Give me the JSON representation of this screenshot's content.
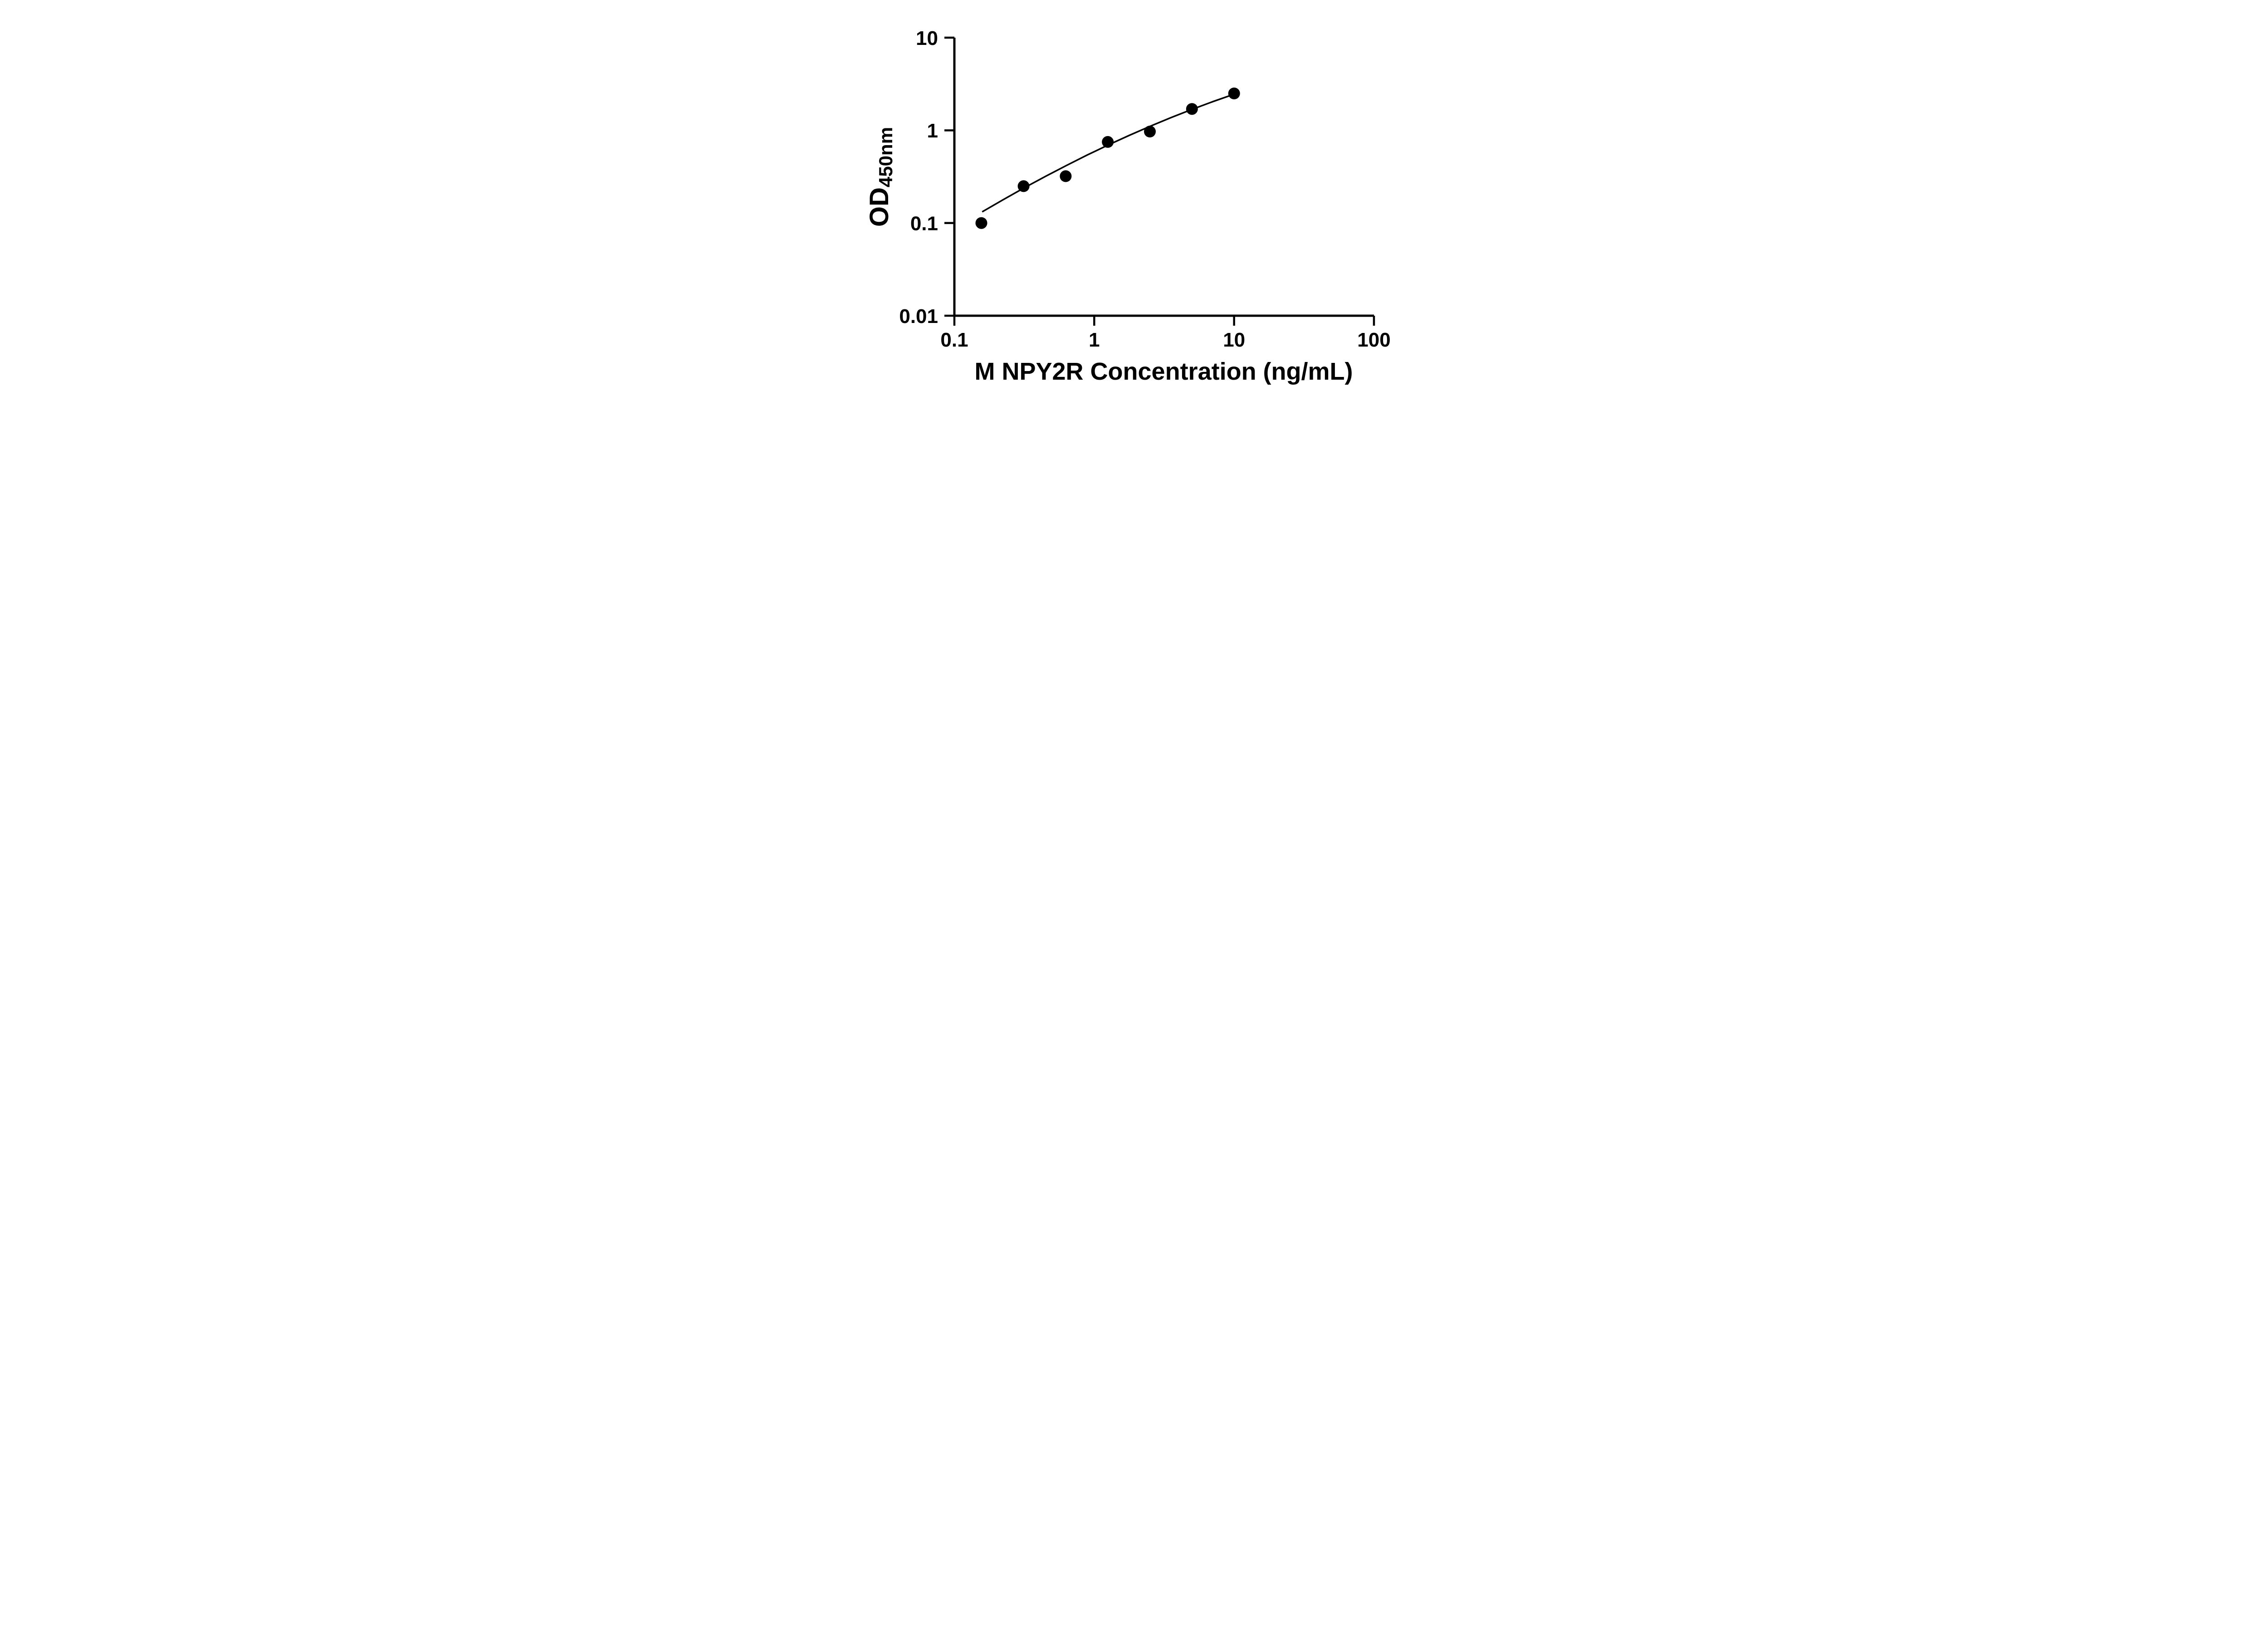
{
  "page": {
    "background": "#ffffff"
  },
  "chart_data": {
    "type": "scatter",
    "xlabel": "M NPY2R Concentration (ng/mL)",
    "ylabel_main": "OD",
    "ylabel_sub": "450nm",
    "x_scale": "log",
    "y_scale": "log",
    "xlim": [
      0.1,
      100
    ],
    "ylim": [
      0.01,
      10
    ],
    "x_ticks": [
      0.1,
      1,
      10,
      100
    ],
    "x_tick_labels": [
      "0.1",
      "1",
      "10",
      "100"
    ],
    "y_ticks": [
      0.01,
      0.1,
      1,
      10
    ],
    "y_tick_labels": [
      "0.01",
      "0.1",
      "1",
      "10"
    ],
    "grid": false,
    "legend": false,
    "axis_color": "#000000",
    "marker_color": "#000000",
    "line_color": "#000000",
    "points": {
      "x": [
        0.156,
        0.3125,
        0.625,
        1.25,
        2.5,
        5,
        10
      ],
      "y": [
        0.1,
        0.25,
        0.32,
        0.75,
        0.97,
        1.7,
        2.5
      ]
    },
    "fit_curve": {
      "x": [
        0.158,
        0.224,
        0.316,
        0.447,
        0.631,
        0.891,
        1.259,
        1.778,
        2.512,
        3.548,
        5.012,
        7.079,
        10
      ],
      "y": [
        0.132,
        0.179,
        0.24,
        0.318,
        0.417,
        0.542,
        0.695,
        0.882,
        1.107,
        1.374,
        1.686,
        2.046,
        2.455
      ]
    }
  }
}
